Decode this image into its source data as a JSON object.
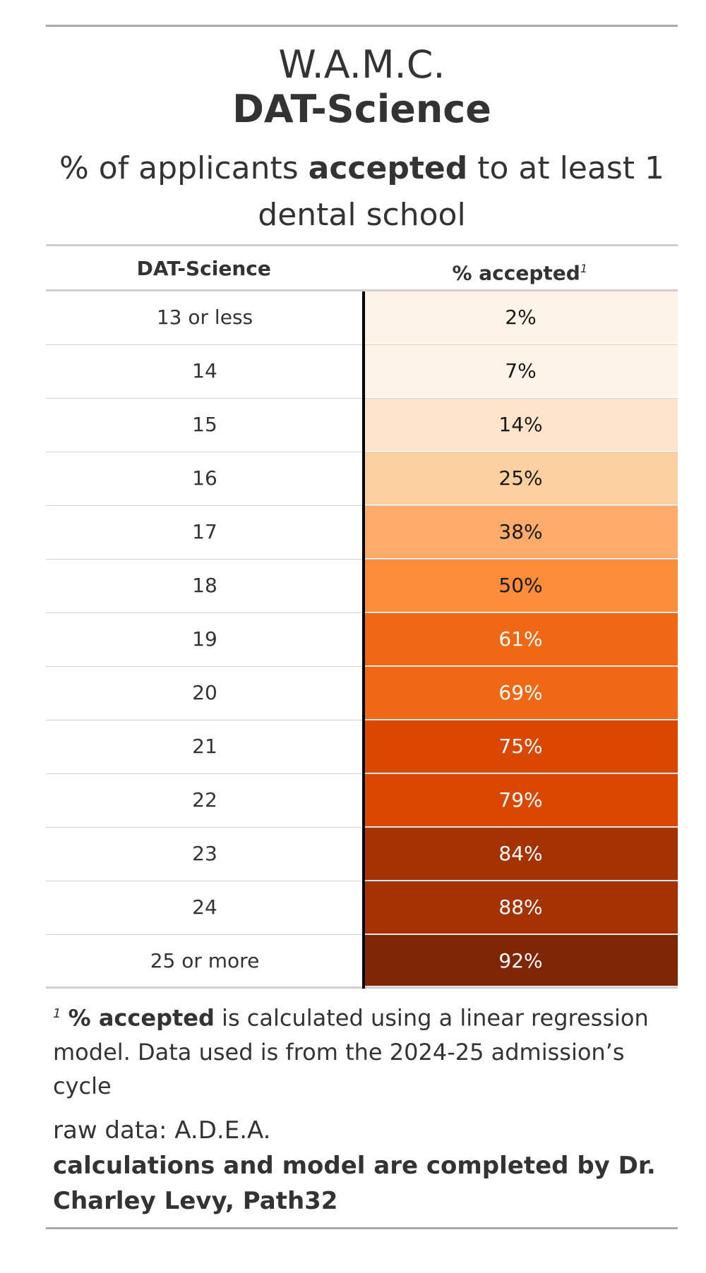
{
  "header": {
    "org": "W.A.M.C.",
    "metric": "DAT-Science",
    "subtitle_pre": "% of applicants ",
    "subtitle_bold": "accepted",
    "subtitle_post": " to at least 1 dental school"
  },
  "table": {
    "col_score": "DAT-Science",
    "col_pct": "% accepted",
    "col_pct_mark": "1"
  },
  "colors": {
    "scale": [
      "#fef3e7",
      "#fde4cb",
      "#fcd09f",
      "#fcab6a",
      "#fd8c3b",
      "#f06813",
      "#d94700",
      "#a53302",
      "#7f2604"
    ],
    "text_dark": "#1a1a1a",
    "text_light": "#ffffff"
  },
  "chart_data": {
    "type": "table",
    "title": "DAT-Science",
    "columns": [
      "DAT-Science",
      "% accepted"
    ],
    "rows": [
      {
        "score": "13 or less",
        "pct": "2%",
        "value": 2,
        "color": "#fef3e7",
        "text": "#1a1a1a"
      },
      {
        "score": "14",
        "pct": "7%",
        "value": 7,
        "color": "#fef3e7",
        "text": "#1a1a1a"
      },
      {
        "score": "15",
        "pct": "14%",
        "value": 14,
        "color": "#fde4cb",
        "text": "#1a1a1a"
      },
      {
        "score": "16",
        "pct": "25%",
        "value": 25,
        "color": "#fcd09f",
        "text": "#1a1a1a"
      },
      {
        "score": "17",
        "pct": "38%",
        "value": 38,
        "color": "#fcab6a",
        "text": "#1a1a1a"
      },
      {
        "score": "18",
        "pct": "50%",
        "value": 50,
        "color": "#fd8c3b",
        "text": "#1a1a1a"
      },
      {
        "score": "19",
        "pct": "61%",
        "value": 61,
        "color": "#f06813",
        "text": "#ffffff"
      },
      {
        "score": "20",
        "pct": "69%",
        "value": 69,
        "color": "#f06813",
        "text": "#ffffff"
      },
      {
        "score": "21",
        "pct": "75%",
        "value": 75,
        "color": "#d94700",
        "text": "#ffffff"
      },
      {
        "score": "22",
        "pct": "79%",
        "value": 79,
        "color": "#d94700",
        "text": "#ffffff"
      },
      {
        "score": "23",
        "pct": "84%",
        "value": 84,
        "color": "#a53302",
        "text": "#ffffff"
      },
      {
        "score": "24",
        "pct": "88%",
        "value": 88,
        "color": "#a53302",
        "text": "#ffffff"
      },
      {
        "score": "25 or more",
        "pct": "92%",
        "value": 92,
        "color": "#7f2604",
        "text": "#ffffff"
      }
    ]
  },
  "footnote": {
    "mark": "1",
    "bold": "% accepted",
    "text": " is calculated using a linear regression model. Data used is from the 2024-25 admission’s cycle"
  },
  "source": {
    "raw": "raw data: A.D.E.A.",
    "credit": "calculations and model are completed by Dr. Charley Levy, Path32"
  }
}
